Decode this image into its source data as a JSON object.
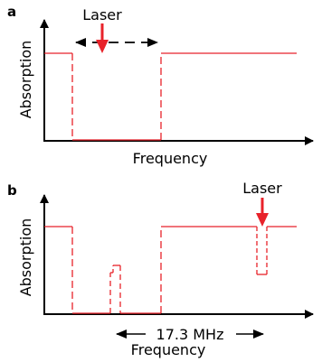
{
  "panels": [
    {
      "letter": "a",
      "ylabel": "Absorption",
      "xlabel": "Frequency",
      "laser_label": "Laser"
    },
    {
      "letter": "b",
      "ylabel": "Absorption",
      "xlabel": "Frequency",
      "laser_label": "Laser",
      "annotation": "17.3 MHz"
    }
  ],
  "colors": {
    "trace": "#e8222a",
    "axis": "#000000",
    "arrow": "#e8222a"
  }
}
